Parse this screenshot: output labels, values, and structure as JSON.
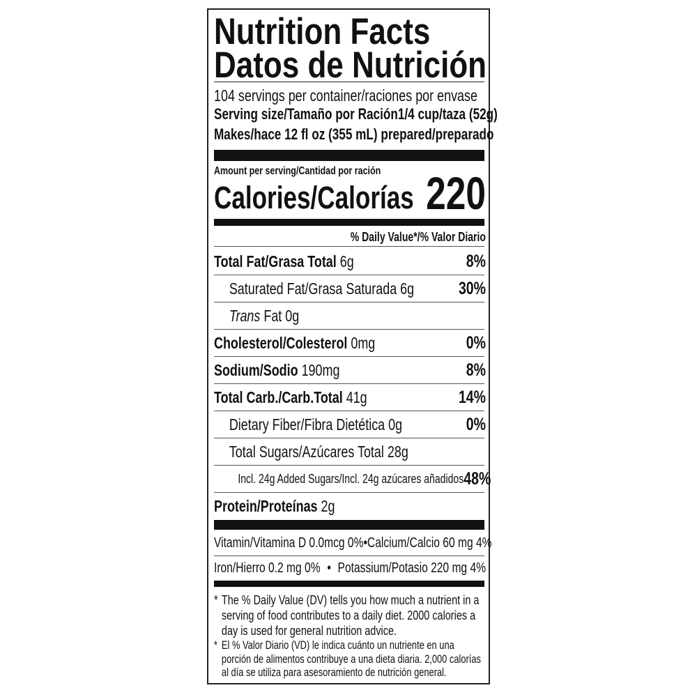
{
  "title_en": "Nutrition Facts",
  "title_es": "Datos de Nutrición",
  "servings": "104 servings per container/raciones por envase",
  "serving_size_label": "Serving size/Tamaño por Ración",
  "serving_size_value": "1/4 cup/taza (52g)",
  "makes": "Makes/hace 12 fl oz (355 mL) prepared/preparado",
  "amount_per_serving": "Amount per serving/Cantidad por ración",
  "calories_label": "Calories/Calorías",
  "calories_value": "220",
  "dv_header": "% Daily Value*/% Valor Diario",
  "nutrients": [
    {
      "name": "Total Fat/Grasa Total",
      "amount": "6g",
      "dv": "8%"
    },
    {
      "name": "Saturated Fat/Grasa Saturada",
      "amount": "6g",
      "dv": "30%"
    },
    {
      "name": "Trans",
      "name_suffix": "Fat",
      "amount": "0g",
      "dv": ""
    },
    {
      "name": "Cholesterol/Colesterol",
      "amount": "0mg",
      "dv": "0%"
    },
    {
      "name": "Sodium/Sodio",
      "amount": "190mg",
      "dv": "8%"
    },
    {
      "name": "Total Carb./Carb.Total",
      "amount": "41g",
      "dv": "14%"
    },
    {
      "name": "Dietary Fiber/Fibra Dietética",
      "amount": "0g",
      "dv": "0%"
    },
    {
      "name": "Total Sugars/Azúcares Total",
      "amount": "28g",
      "dv": ""
    },
    {
      "name": "Incl. 24g Added Sugars/Incl. 24g azúcares añadidos",
      "amount": "",
      "dv": "48%"
    },
    {
      "name": "Protein/Proteínas",
      "amount": "2g",
      "dv": ""
    }
  ],
  "vitamins": [
    {
      "left": "Vitamin/Vitamina D 0.0mcg 0%",
      "right": "Calcium/Calcio 60 mg 4%"
    },
    {
      "left": "Iron/Hierro 0.2 mg 0%",
      "right": "Potassium/Potasio 220 mg 4%"
    }
  ],
  "bullet": "•",
  "footnote_star": "*",
  "footnote_en": "The % Daily Value (DV) tells you how much a nutrient in a serving of food contributes to a daily diet. 2000 calories a day is used for general nutrition advice.",
  "footnote_es": "El % Valor Diario (VD) le indica cuánto un nutriente en una porción de alimentos contribuye a una dieta diaria. 2,000 calorías al día se utiliza para asesoramiento de nutrición general."
}
